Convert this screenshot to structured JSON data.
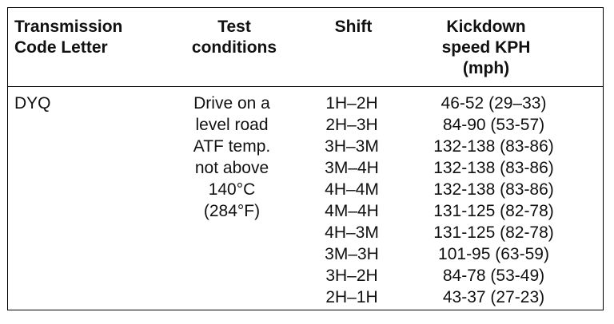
{
  "headers": {
    "code": [
      "Transmission",
      "Code Letter"
    ],
    "test": [
      "Test",
      "conditions"
    ],
    "shift": [
      "Shift"
    ],
    "kickdown": [
      "Kickdown",
      "speed KPH",
      "(mph)"
    ]
  },
  "row": {
    "code": "DYQ",
    "conditions": [
      "Drive on a",
      "level road",
      "ATF temp.",
      "not above",
      "140°C",
      "(284°F)"
    ],
    "shifts": [
      "1H–2H",
      "2H–3H",
      "3H–3M",
      "3M–4H",
      "4H–4M",
      "4M–4H",
      "4H–3M",
      "3M–3H",
      "3H–2H",
      "2H–1H"
    ],
    "speeds": [
      "46-52 (29–33)",
      "84-90 (53-57)",
      "132-138 (83-86)",
      "132-138 (83-86)",
      "132-138 (83-86)",
      "131-125 (82-78)",
      "131-125 (82-78)",
      "101-95 (63-59)",
      "84-78 (53-49)",
      "43-37 (27-23)"
    ]
  }
}
